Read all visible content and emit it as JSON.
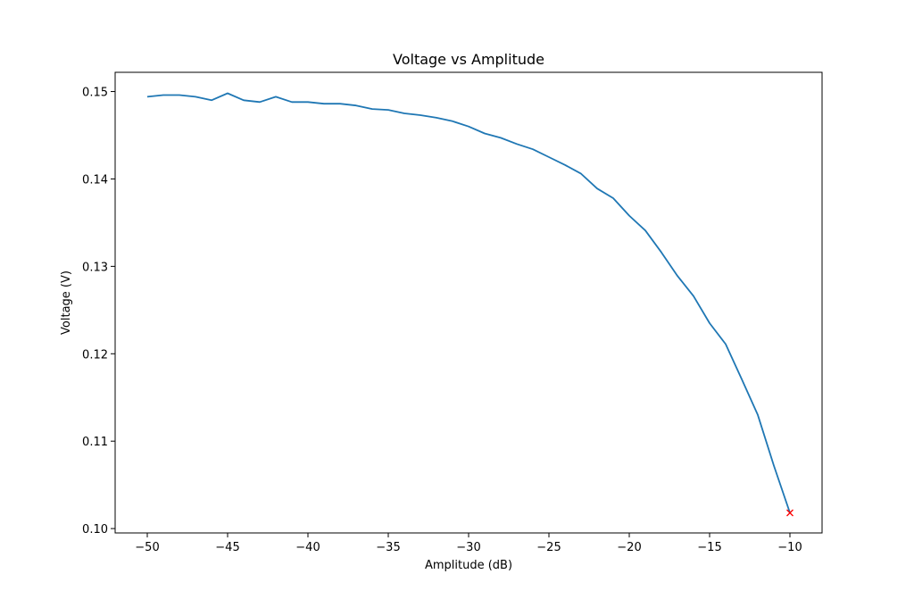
{
  "chart_data": {
    "type": "line",
    "title": "Voltage vs Amplitude",
    "xlabel": "Amplitude (dB)",
    "ylabel": "Voltage (V)",
    "xlim": [
      -52,
      -8
    ],
    "ylim": [
      0.0995,
      0.1522
    ],
    "grid": false,
    "xticks": [
      -50,
      -45,
      -40,
      -35,
      -30,
      -25,
      -20,
      -15,
      -10
    ],
    "xtick_labels": [
      "−50",
      "−45",
      "−40",
      "−35",
      "−30",
      "−25",
      "−20",
      "−15",
      "−10"
    ],
    "yticks": [
      0.1,
      0.11,
      0.12,
      0.13,
      0.14,
      0.15
    ],
    "ytick_labels": [
      "0.10",
      "0.11",
      "0.12",
      "0.13",
      "0.14",
      "0.15"
    ],
    "series": [
      {
        "color": "#1f77b4",
        "x": [
          -50,
          -49,
          -48,
          -47,
          -46,
          -45,
          -44,
          -43,
          -42,
          -41,
          -40,
          -39,
          -38,
          -37,
          -36,
          -35,
          -34,
          -33,
          -32,
          -31,
          -30,
          -29,
          -28,
          -27,
          -26,
          -25,
          -24,
          -23,
          -22,
          -21,
          -20,
          -19,
          -18,
          -17,
          -16,
          -15,
          -14,
          -13,
          -12,
          -11,
          -10
        ],
        "y": [
          0.1494,
          0.1496,
          0.1496,
          0.1494,
          0.149,
          0.1498,
          0.149,
          0.1488,
          0.1494,
          0.1488,
          0.1488,
          0.1486,
          0.1486,
          0.1484,
          0.148,
          0.1479,
          0.1475,
          0.1473,
          0.147,
          0.1466,
          0.146,
          0.1452,
          0.1447,
          0.144,
          0.1434,
          0.1425,
          0.1416,
          0.1406,
          0.1389,
          0.1378,
          0.1358,
          0.1341,
          0.1316,
          0.1289,
          0.1266,
          0.1235,
          0.1211,
          0.1171,
          0.113,
          0.1072,
          0.1018
        ]
      }
    ],
    "marker": {
      "x": -10,
      "y": 0.1018,
      "symbol": "x",
      "color": "#ff0000"
    }
  }
}
